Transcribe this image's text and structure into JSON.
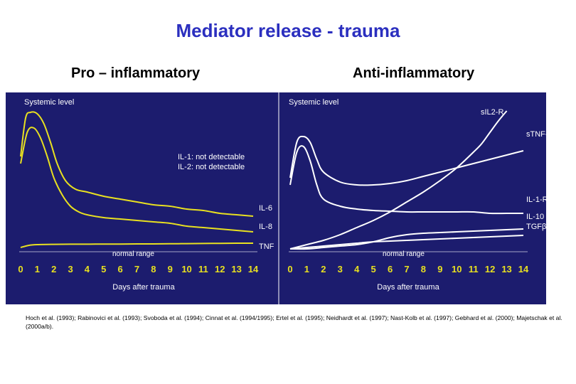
{
  "title": "Mediator release - trauma",
  "subtitle_left": "Pro – inflammatory",
  "subtitle_right": "Anti-inflammatory",
  "references": "Hoch et al. (1993); Rabinovici et al. (1993); Svoboda et al. (1994); Cinnat et al. (1994/1995); Ertel et al. (1995); Neidhardt et al. (1997); Nast-Kolb et al. (1997); Gebhard et al. (2000); Majetschak et al. (2000a/b).",
  "colors": {
    "panel": "#1c1c6e",
    "pro_line": "#e8e020",
    "anti_line": "#ffffff",
    "axis_text": "#e8e020",
    "label_text": "#ffffff"
  },
  "chart_data": [
    {
      "type": "line",
      "title": "Pro – inflammatory",
      "corner_label": "Systemic level",
      "xlabel": "Days after trauma",
      "ylabel": "",
      "x_ticks": [
        0,
        1,
        2,
        3,
        4,
        5,
        6,
        7,
        8,
        9,
        10,
        11,
        12,
        13,
        14
      ],
      "xlim": [
        0,
        14
      ],
      "ylim": [
        0,
        100
      ],
      "band_label": "normal range",
      "note_lines": [
        "IL-1: not detectable",
        "IL-2: not detectable"
      ],
      "series": [
        {
          "name": "IL-6",
          "x": [
            0,
            0.3,
            0.6,
            1,
            1.4,
            1.8,
            2.2,
            2.7,
            3.3,
            4,
            5,
            6,
            7,
            8,
            9,
            10,
            11,
            12,
            13,
            14
          ],
          "y": [
            65,
            92,
            96,
            95,
            88,
            75,
            60,
            48,
            42,
            40,
            37,
            35,
            33,
            31,
            30,
            28,
            27,
            25,
            24,
            23
          ]
        },
        {
          "name": "IL-8",
          "x": [
            0,
            0.4,
            0.8,
            1.2,
            1.6,
            2,
            2.5,
            3,
            3.5,
            4,
            5,
            6,
            7,
            8,
            9,
            10,
            11,
            12,
            13,
            14
          ],
          "y": [
            60,
            82,
            85,
            78,
            65,
            50,
            38,
            30,
            26,
            24,
            22,
            21,
            20,
            19,
            18,
            16,
            15,
            14,
            13,
            12
          ]
        },
        {
          "name": "TNF",
          "x": [
            0,
            0.5,
            1,
            2,
            3,
            4,
            5,
            6,
            7,
            8,
            9,
            10,
            11,
            12,
            13,
            14
          ],
          "y": [
            1,
            2.5,
            3,
            3.2,
            3.3,
            3.3,
            3.4,
            3.4,
            3.5,
            3.5,
            3.6,
            3.7,
            3.8,
            3.9,
            4,
            4
          ]
        }
      ]
    },
    {
      "type": "line",
      "title": "Anti-inflammatory",
      "corner_label": "Systemic level",
      "xlabel": "Days after trauma",
      "ylabel": "",
      "x_ticks": [
        0,
        1,
        2,
        3,
        4,
        5,
        6,
        7,
        8,
        9,
        10,
        11,
        12,
        13,
        14
      ],
      "xlim": [
        0,
        14
      ],
      "ylim": [
        0,
        100
      ],
      "band_label": "normal range",
      "series": [
        {
          "name": "sIL2-R",
          "x": [
            0,
            1,
            2,
            3,
            4,
            5,
            6,
            7,
            8,
            9,
            10,
            11,
            11.5,
            12,
            12.5,
            13
          ],
          "y": [
            0,
            3,
            6,
            10,
            15,
            20,
            26,
            33,
            40,
            48,
            57,
            68,
            74,
            82,
            90,
            97
          ]
        },
        {
          "name": "sTNF-R",
          "x": [
            0,
            0.4,
            0.8,
            1.2,
            1.6,
            2,
            3,
            4,
            5,
            6,
            7,
            8,
            9,
            10,
            11,
            12,
            13,
            14
          ],
          "y": [
            50,
            75,
            79,
            75,
            63,
            54,
            47,
            45,
            45,
            46,
            48,
            51,
            54,
            57,
            60,
            63,
            66,
            69
          ]
        },
        {
          "name": "IL-1-RA",
          "x": [
            0,
            0.4,
            0.8,
            1.2,
            1.6,
            2,
            3,
            4,
            5,
            6,
            7,
            8,
            9,
            10,
            11,
            12,
            13,
            14
          ],
          "y": [
            45,
            68,
            72,
            62,
            45,
            35,
            30,
            28,
            27,
            26.5,
            26,
            26,
            26,
            26,
            26,
            25,
            25,
            25
          ]
        },
        {
          "name": "IL-10 TGFβ",
          "x": [
            0,
            0.5,
            1,
            2,
            3,
            4,
            5,
            6,
            7,
            8,
            9,
            10,
            11,
            12,
            13,
            14
          ],
          "y": [
            0,
            0.5,
            1,
            2,
            3,
            4,
            5,
            5.5,
            6,
            6.5,
            7,
            7.5,
            8,
            8.5,
            9,
            9.5
          ]
        },
        {
          "name": "",
          "x": [
            0,
            1,
            2,
            3,
            4,
            5,
            6,
            7,
            8,
            9,
            10,
            11,
            12,
            13,
            14
          ],
          "y": [
            0,
            0,
            1,
            2,
            3,
            5,
            8,
            10,
            11,
            11.5,
            12,
            12.5,
            13,
            13.5,
            14
          ]
        }
      ]
    }
  ]
}
